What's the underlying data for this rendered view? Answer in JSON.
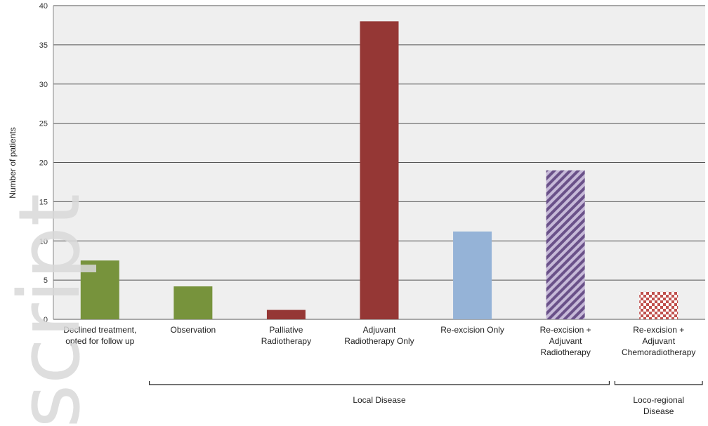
{
  "chart_data": {
    "type": "bar",
    "ylabel": "Number of patients",
    "ylim": [
      0,
      40
    ],
    "yticks": [
      0,
      5,
      10,
      15,
      20,
      25,
      30,
      35,
      40
    ],
    "grid": true,
    "categories": [
      "Declined treatment,\nopted for follow up",
      "Observation",
      "Palliative\nRadiotherapy",
      "Adjuvant\nRadiotherapy Only",
      "Re-excision Only",
      "Re-excision +\nAdjuvant\nRadiotherapy",
      "Re-excision +\nAdjuvant\nChemoradiotherapy"
    ],
    "values": [
      7.5,
      4.2,
      1.2,
      38,
      11.2,
      19,
      3.5
    ],
    "colors": [
      "#77933c",
      "#77933c",
      "#953735",
      "#953735",
      "#95b3d7",
      "#8064a2",
      "#c0504d"
    ],
    "patterns": [
      "solid",
      "solid",
      "solid",
      "solid",
      "solid",
      "diagonal-stripes",
      "checker"
    ],
    "groups": [
      {
        "label": "Local Disease",
        "from": 1,
        "to": 5
      },
      {
        "label": "Loco-regional\nDisease",
        "from": 6,
        "to": 6
      }
    ]
  },
  "watermark": "script"
}
